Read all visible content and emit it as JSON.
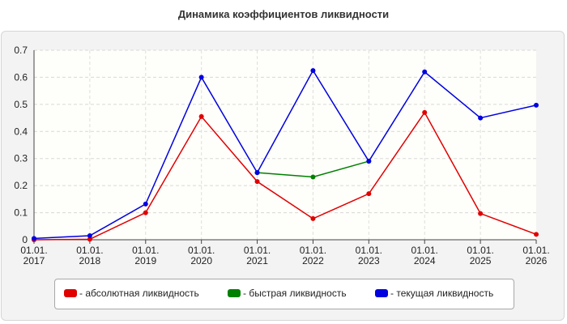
{
  "chart_data": {
    "type": "line",
    "title": "Динамика коэффициентов ликвидности",
    "categories": [
      "01.01.\n2017",
      "01.01.\n2018",
      "01.01.\n2019",
      "01.01.\n2020",
      "01.01.\n2021",
      "01.01.\n2022",
      "01.01.\n2023",
      "01.01.\n2024",
      "01.01.\n2025",
      "01.01.\n2026"
    ],
    "series": [
      {
        "name": "- абсолютная ликвидность",
        "color": "#e00000",
        "values": [
          0.0,
          0.002,
          0.1,
          0.455,
          0.215,
          0.078,
          0.17,
          0.47,
          0.097,
          0.02
        ]
      },
      {
        "name": "- быстрая ликвидность",
        "color": "#008000",
        "values": [
          null,
          null,
          null,
          null,
          0.248,
          0.232,
          0.29,
          null,
          null,
          null
        ]
      },
      {
        "name": "- текущая ликвидность",
        "color": "#0000e0",
        "values": [
          0.005,
          0.015,
          0.132,
          0.6,
          0.248,
          0.625,
          0.29,
          0.62,
          0.45,
          0.497
        ]
      }
    ],
    "ylim": [
      0,
      0.7
    ],
    "yticks": [
      "0",
      "0.1",
      "0.2",
      "0.3",
      "0.4",
      "0.5",
      "0.6",
      "0.7"
    ],
    "grid": true,
    "legend_position": "bottom"
  }
}
